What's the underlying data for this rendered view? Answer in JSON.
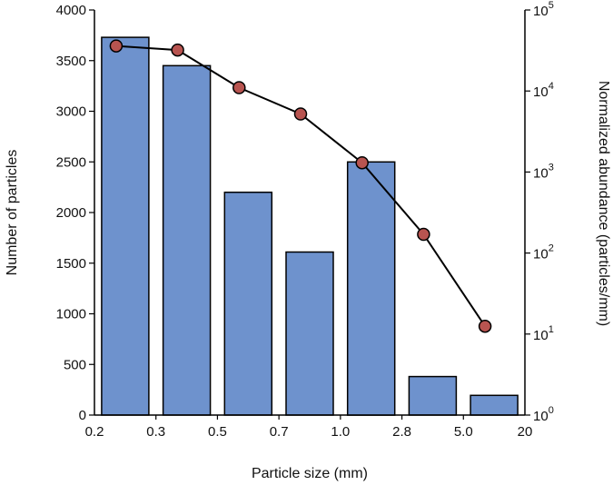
{
  "chart_data": {
    "type": "bar+line",
    "xlabel": "Particle size (mm)",
    "ylabel_left": "Number of particles",
    "ylabel_right": "Normalized abundance (particles/mm)",
    "x_tick_labels": [
      "0.2",
      "0.3",
      "0.5",
      "0.7",
      "1.0",
      "2.8",
      "5.0",
      "20"
    ],
    "left_axis": {
      "min": 0,
      "max": 4000,
      "ticks": [
        0,
        500,
        1000,
        1500,
        2000,
        2500,
        3000,
        3500,
        4000
      ]
    },
    "right_axis": {
      "scale": "log",
      "min": 1,
      "max": 100000,
      "ticks": [
        {
          "base": "10",
          "exp": "0"
        },
        {
          "base": "10",
          "exp": "1"
        },
        {
          "base": "10",
          "exp": "2"
        },
        {
          "base": "10",
          "exp": "3"
        },
        {
          "base": "10",
          "exp": "4"
        },
        {
          "base": "10",
          "exp": "5"
        }
      ]
    },
    "bars": {
      "bins": [
        "0.2-0.3",
        "0.3-0.5",
        "0.5-0.7",
        "0.7-1.0",
        "1.0-2.8",
        "2.8-5.0",
        "5.0-20"
      ],
      "values": [
        3730,
        3450,
        2200,
        1610,
        2500,
        380,
        195
      ],
      "color": "#6e92cd"
    },
    "line": {
      "values": [
        36000,
        32000,
        11000,
        5200,
        1300,
        170,
        12.5
      ],
      "line_color": "#000000",
      "marker_color": "#b85450"
    },
    "grid": false,
    "legend": "none"
  }
}
